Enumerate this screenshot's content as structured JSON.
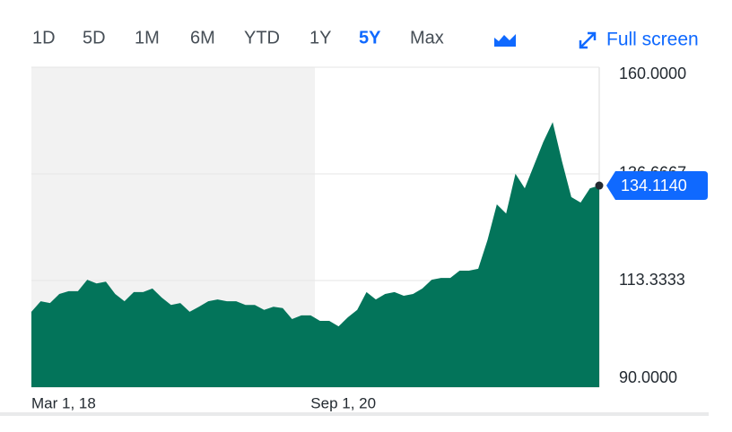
{
  "range_tabs": [
    "1D",
    "5D",
    "1M",
    "6M",
    "YTD",
    "1Y",
    "5Y",
    "Max"
  ],
  "selected_range": 6,
  "full_screen": "Full screen",
  "chart_data": {
    "type": "area",
    "color": "#03745a",
    "categories": [
      "Mar 1, 18",
      null,
      null,
      null,
      null,
      null,
      null,
      null,
      null,
      null,
      null,
      null,
      null,
      null,
      null,
      null,
      null,
      null,
      null,
      null,
      null,
      null,
      null,
      null,
      null,
      null,
      null,
      null,
      null,
      null,
      "Sep 1, 20",
      null,
      null,
      null,
      null,
      null,
      null,
      null,
      null,
      null,
      null,
      null,
      null,
      null,
      null,
      null,
      null,
      null,
      null,
      null,
      null,
      null,
      null,
      null,
      null,
      null,
      null,
      null,
      null,
      null,
      null,
      null
    ],
    "values": [
      106.5,
      108.8,
      108.4,
      110.4,
      111,
      111,
      113.5,
      112.7,
      113.1,
      110.4,
      108.8,
      110.8,
      110.8,
      111.6,
      109.6,
      108,
      108.4,
      106.5,
      107.6,
      108.8,
      109.2,
      108.8,
      108.8,
      108,
      108,
      106.9,
      107.6,
      107.3,
      104.9,
      105.7,
      105.7,
      104.5,
      104.5,
      103.3,
      105.3,
      106.9,
      110.8,
      109.2,
      110.4,
      110.8,
      110,
      110.4,
      111.6,
      113.5,
      113.9,
      113.9,
      115.5,
      115.5,
      115.9,
      122.2,
      130,
      128,
      136.7,
      133.5,
      138.6,
      143.7,
      148,
      139.4,
      131.6,
      130.4,
      133.5,
      134.114
    ],
    "value_labels": [
      null,
      null,
      null,
      null,
      null,
      null,
      null,
      null,
      null,
      null,
      null,
      null,
      null,
      null,
      null,
      null,
      null,
      null,
      null,
      null,
      null,
      null,
      null,
      null,
      null,
      null,
      null,
      null,
      null,
      null,
      null,
      null,
      null,
      null,
      null,
      null,
      null,
      null,
      null,
      null,
      null,
      null,
      null,
      null,
      null,
      null,
      null,
      null,
      null,
      null,
      null,
      null,
      null,
      null,
      null,
      null,
      null,
      null,
      null,
      null,
      null,
      "134.1140"
    ],
    "ylim": [
      90,
      160
    ],
    "yticks": [
      {
        "value": 160,
        "label": "160.0000"
      },
      {
        "value": 136.6667,
        "label": "136.6667"
      },
      {
        "value": 113.3333,
        "label": "113.3333"
      },
      {
        "value": 90,
        "label": "90.0000"
      }
    ],
    "grid": true
  }
}
